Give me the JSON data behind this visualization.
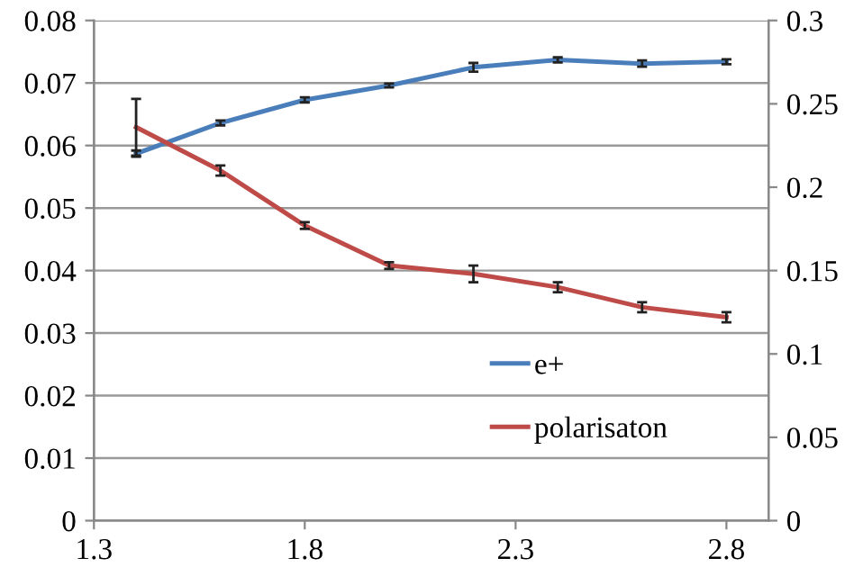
{
  "chart_data": {
    "type": "line",
    "x": [
      1.4,
      1.6,
      1.8,
      2.0,
      2.2,
      2.4,
      2.6,
      2.8
    ],
    "series": [
      {
        "name": "e+",
        "color": "#4a7ebb",
        "values": [
          0.0587,
          0.0636,
          0.0673,
          0.0696,
          0.0725,
          0.0737,
          0.0731,
          0.0734
        ],
        "errors": [
          0.0005,
          0.0004,
          0.0004,
          0.0003,
          0.0007,
          0.0004,
          0.0005,
          0.0004
        ]
      },
      {
        "name": "polarisaton",
        "color": "#be4b48",
        "axis": "y2",
        "values": [
          0.236,
          0.21,
          0.177,
          0.153,
          0.148,
          0.14,
          0.128,
          0.122
        ],
        "errors": [
          0.017,
          0.003,
          0.002,
          0.002,
          0.005,
          0.003,
          0.003,
          0.003
        ]
      }
    ],
    "xlim": [
      1.3,
      2.9
    ],
    "xticks": [
      1.3,
      1.8,
      2.3,
      2.8
    ],
    "ylim": [
      0,
      0.08
    ],
    "yticks": [
      0,
      0.01,
      0.02,
      0.03,
      0.04,
      0.05,
      0.06,
      0.07,
      0.08
    ],
    "y2lim": [
      0,
      0.3
    ],
    "y2ticks": [
      0,
      0.05,
      0.1,
      0.15,
      0.2,
      0.25,
      0.3
    ],
    "grid": "y",
    "legend": "right",
    "marker": "none",
    "line_style": "solid"
  }
}
